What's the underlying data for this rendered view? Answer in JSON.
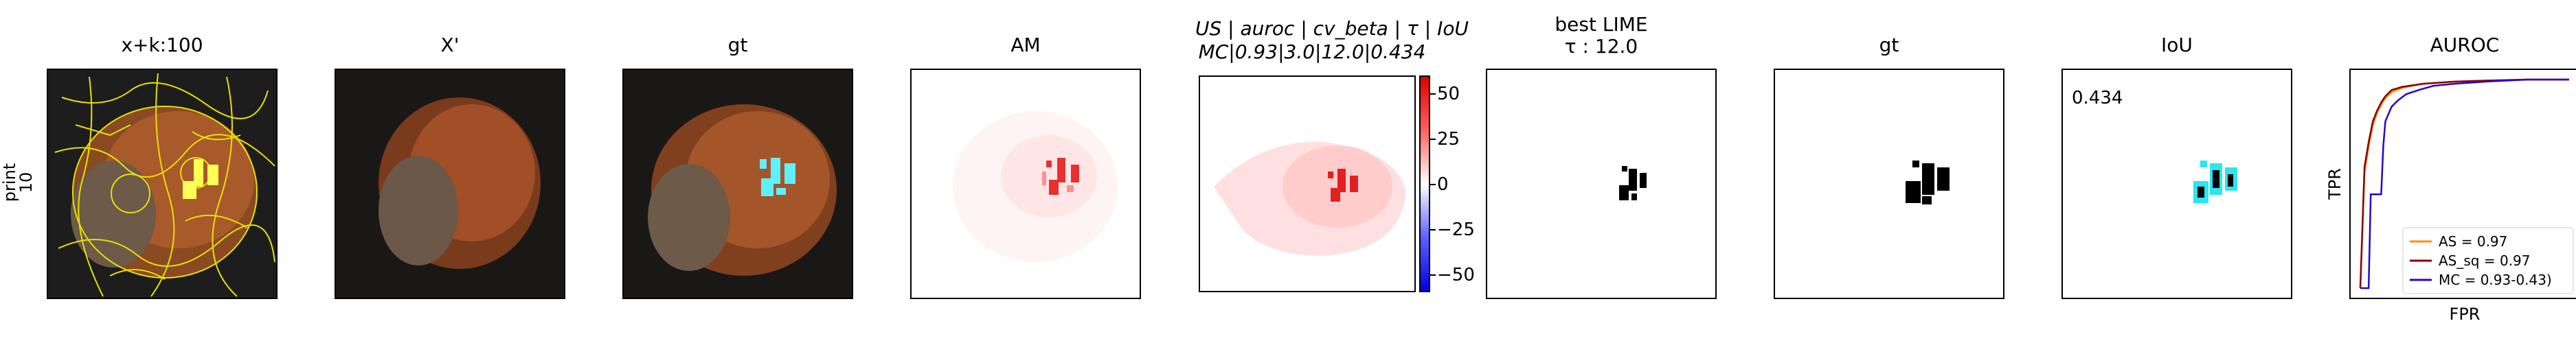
{
  "panels": [
    {
      "title": "x+k:100"
    },
    {
      "title": "X'"
    },
    {
      "title": "gt"
    },
    {
      "title": "AM"
    },
    {
      "title_line1": "US | auroc | cv_beta | τ | IoU",
      "title_line2": "MC|0.93|3.0|12.0|0.434"
    },
    {
      "title_line1": "best LIME",
      "title_line2": "τ : 12.0"
    },
    {
      "title": "gt"
    },
    {
      "title": "IoU"
    },
    {
      "title": "AUROC"
    }
  ],
  "row_label": {
    "line1": "print",
    "line2": "10"
  },
  "iou_value": "0.434",
  "colorbar": {
    "ticks": [
      "50",
      "25",
      "0",
      "−25",
      "−50"
    ],
    "tick_values": [
      50,
      25,
      0,
      -25,
      -50
    ],
    "range": [
      -60,
      60
    ],
    "colors": {
      "top": "#e00000",
      "mid": "#ffffff",
      "bottom": "#0000e0"
    }
  },
  "chart_data": {
    "type": "line",
    "title": "AUROC",
    "xlabel": "FPR",
    "ylabel": "TPR",
    "xlim": [
      0,
      1
    ],
    "ylim": [
      0,
      1
    ],
    "legend_position": "lower-right",
    "series": [
      {
        "name": "AS = 0.97",
        "color": "#ff8c00",
        "x": [
          0,
          0.02,
          0.04,
          0.06,
          0.08,
          0.1,
          0.12,
          0.15,
          0.2,
          0.3,
          0.45,
          0.6,
          0.8,
          1.0
        ],
        "y": [
          0,
          0.55,
          0.68,
          0.78,
          0.84,
          0.88,
          0.91,
          0.94,
          0.96,
          0.98,
          0.99,
          0.995,
          1.0,
          1.0
        ]
      },
      {
        "name": "AS_sq = 0.97",
        "color": "#8b0000",
        "x": [
          0,
          0.02,
          0.04,
          0.06,
          0.08,
          0.1,
          0.12,
          0.15,
          0.2,
          0.3,
          0.45,
          0.6,
          0.8,
          1.0
        ],
        "y": [
          0,
          0.58,
          0.7,
          0.8,
          0.85,
          0.89,
          0.92,
          0.95,
          0.965,
          0.98,
          0.99,
          0.995,
          1.0,
          1.0
        ]
      },
      {
        "name": "MC = 0.93-0.43)",
        "color": "#2a00d5",
        "x": [
          0,
          0.04,
          0.05,
          0.1,
          0.11,
          0.12,
          0.15,
          0.18,
          0.22,
          0.28,
          0.35,
          0.45,
          0.6,
          0.8,
          1.0
        ],
        "y": [
          0,
          0.0,
          0.45,
          0.45,
          0.68,
          0.8,
          0.87,
          0.9,
          0.93,
          0.95,
          0.97,
          0.98,
          0.99,
          1.0,
          1.0
        ]
      }
    ]
  }
}
